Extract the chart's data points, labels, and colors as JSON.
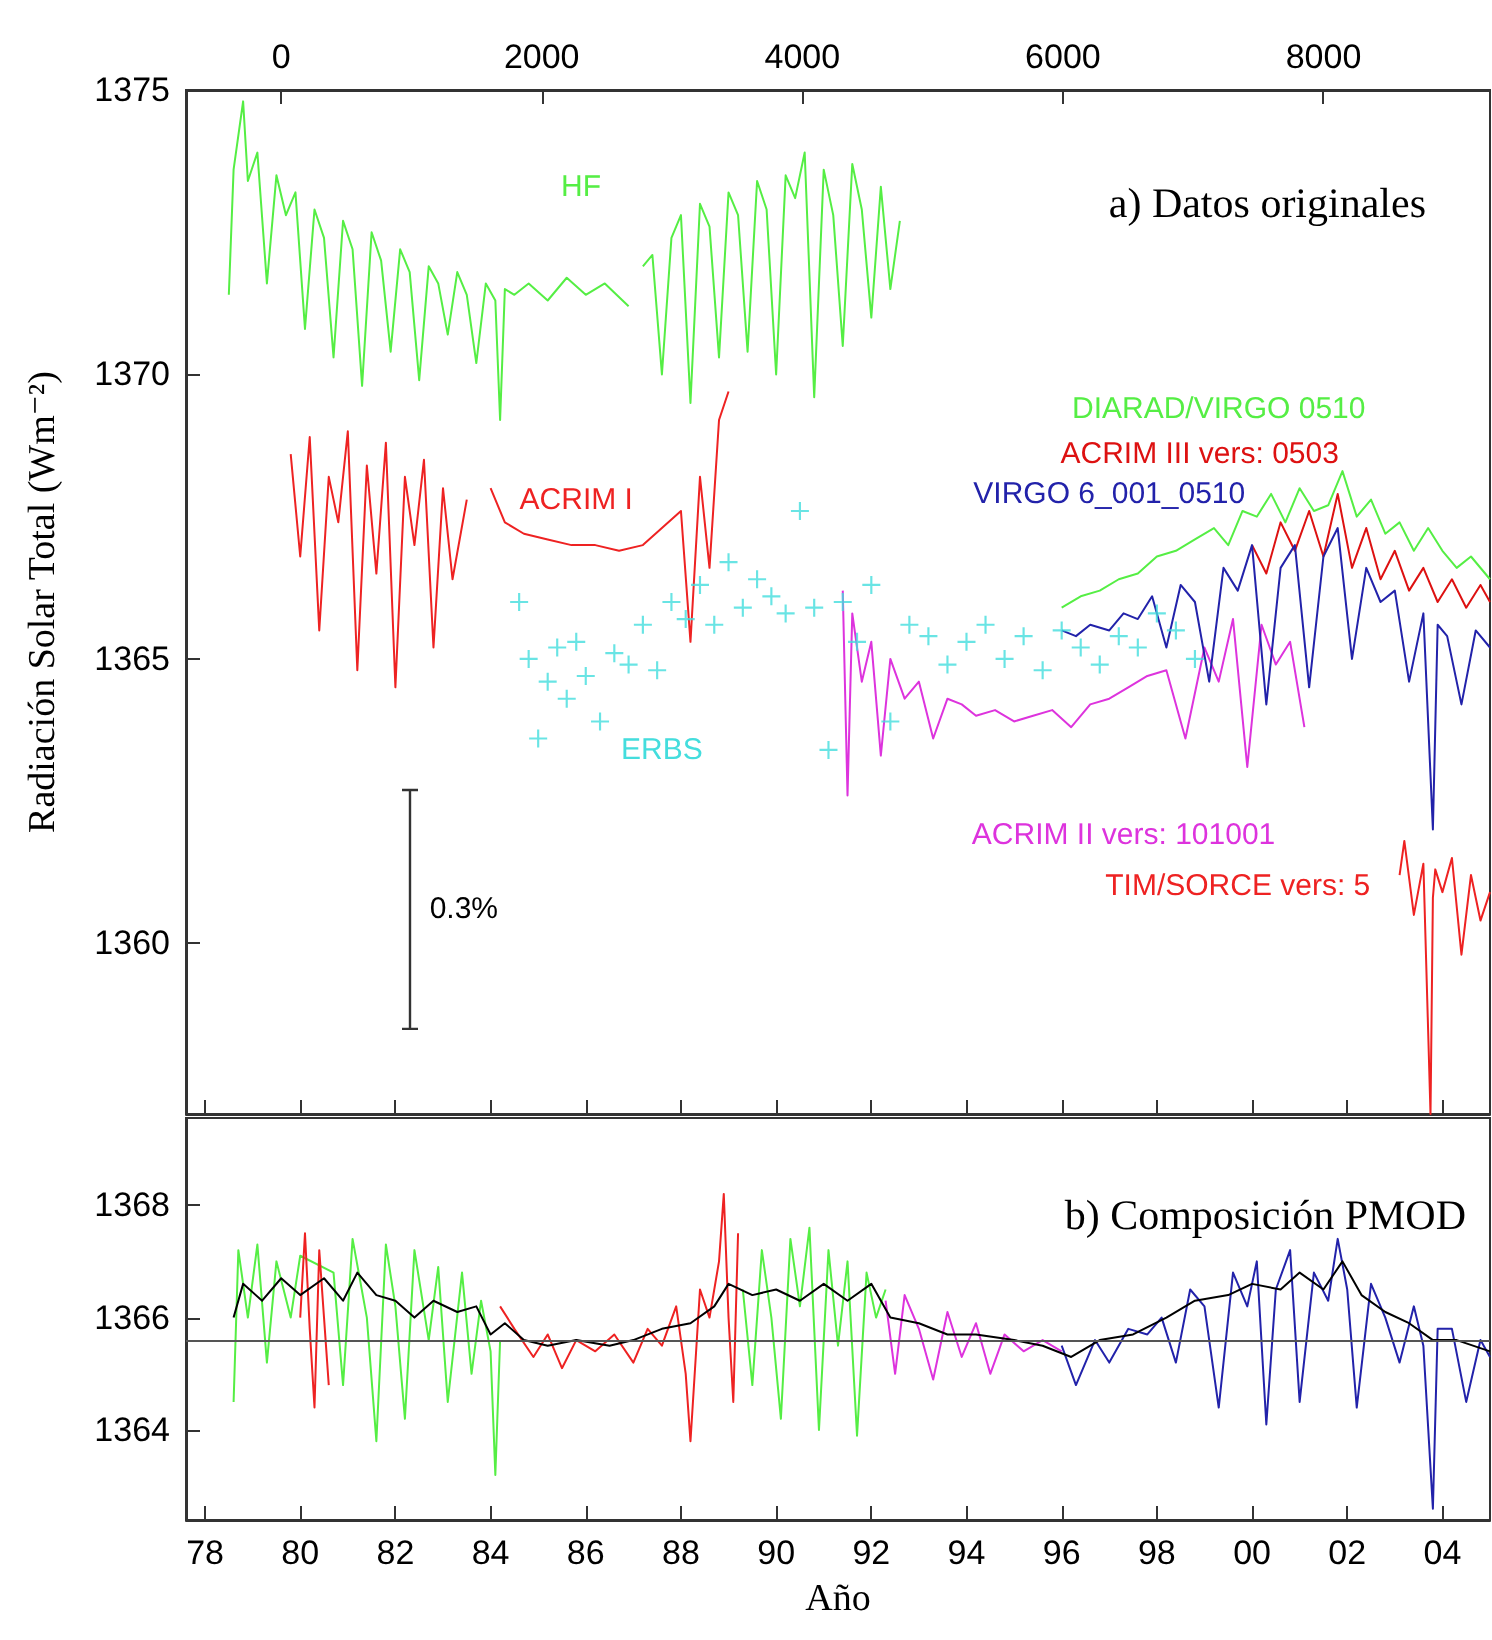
{
  "chart_data": [
    {
      "type": "line",
      "title": "a) Datos originales",
      "ylabel": "Radiación Solar Total (Wm⁻²)",
      "annotations": [
        "0.3%"
      ],
      "legend": false,
      "grid": false,
      "marker": "none",
      "tick_labels": "y",
      "xlim": [
        1977.6,
        2005.0
      ],
      "xticks": [
        {
          "value": 1978,
          "label": null
        },
        {
          "value": 1980,
          "label": null
        },
        {
          "value": 1982,
          "label": null
        },
        {
          "value": 1984,
          "label": null
        },
        {
          "value": 1986,
          "label": null
        },
        {
          "value": 1988,
          "label": null
        },
        {
          "value": 1990,
          "label": null
        },
        {
          "value": 1992,
          "label": null
        },
        {
          "value": 1994,
          "label": null
        },
        {
          "value": 1996,
          "label": null
        },
        {
          "value": 1998,
          "label": null
        },
        {
          "value": 2000,
          "label": null
        },
        {
          "value": 2002,
          "label": null
        },
        {
          "value": 2004,
          "label": null
        }
      ],
      "x2lim": [
        -730,
        9278
      ],
      "x2ticks": [
        0,
        2000,
        4000,
        6000,
        8000
      ],
      "ylim": [
        1357,
        1375
      ],
      "yticks": [
        1360,
        1365,
        1370,
        1375
      ],
      "series": [
        {
          "name": "HF",
          "color": "#55ee44",
          "x": [
            1978.5,
            1978.6,
            1978.8,
            1978.9,
            1979.1,
            1979.3,
            1979.5,
            1979.7,
            1979.9,
            1980.1,
            1980.3,
            1980.5,
            1980.7,
            1980.9,
            1981.1,
            1981.3,
            1981.5,
            1981.7,
            1981.9,
            1982.1,
            1982.3,
            1982.5,
            1982.7,
            1982.9,
            1983.1,
            1983.3,
            1983.5,
            1983.7,
            1983.9,
            1984.1,
            1984.2,
            1984.3,
            1984.5,
            1984.8,
            1985.2,
            1985.6,
            1986.0,
            1986.4,
            1986.9,
            1987.05,
            1987.2,
            1987.4,
            1987.6,
            1987.8,
            1988.0,
            1988.2,
            1988.4,
            1988.6,
            1988.8,
            1989.0,
            1989.2,
            1989.4,
            1989.6,
            1989.8,
            1990.0,
            1990.2,
            1990.4,
            1990.6,
            1990.8,
            1991.0,
            1991.2,
            1991.4,
            1991.6,
            1991.8,
            1992.0,
            1992.2,
            1992.4,
            1992.6
          ],
          "values": [
            1371.4,
            1373.6,
            1374.8,
            1373.4,
            1373.9,
            1371.6,
            1373.5,
            1372.8,
            1373.2,
            1370.8,
            1372.9,
            1372.4,
            1370.3,
            1372.7,
            1372.2,
            1369.8,
            1372.5,
            1372.0,
            1370.4,
            1372.2,
            1371.8,
            1369.9,
            1371.9,
            1371.6,
            1370.7,
            1371.8,
            1371.4,
            1370.2,
            1371.6,
            1371.3,
            1369.2,
            1371.5,
            1371.4,
            1371.6,
            1371.3,
            1371.7,
            1371.4,
            1371.6,
            1371.2,
            null,
            1371.9,
            1372.1,
            1370.0,
            1372.4,
            1372.8,
            1369.5,
            1373.0,
            1372.6,
            1370.3,
            1373.2,
            1372.8,
            1370.4,
            1373.4,
            1372.9,
            1370.0,
            1373.5,
            1373.1,
            1373.9,
            1369.6,
            1373.6,
            1372.8,
            1370.5,
            1373.7,
            1372.9,
            1371.0,
            1373.3,
            1371.5,
            1372.7
          ]
        },
        {
          "name": "ACRIM I",
          "color": "#ee2222",
          "x": [
            1979.8,
            1980.0,
            1980.2,
            1980.4,
            1980.6,
            1980.8,
            1981.0,
            1981.2,
            1981.4,
            1981.6,
            1981.8,
            1982.0,
            1982.2,
            1982.4,
            1982.6,
            1982.8,
            1983.0,
            1983.2,
            1983.5,
            1983.75,
            1984.0,
            1984.3,
            1984.7,
            1985.2,
            1985.7,
            1986.2,
            1986.7,
            1987.2,
            1987.6,
            1988.0,
            1988.2,
            1988.4,
            1988.6,
            1988.8,
            1989.0
          ],
          "values": [
            1368.6,
            1366.8,
            1368.9,
            1365.5,
            1368.2,
            1367.4,
            1369.0,
            1364.8,
            1368.4,
            1366.5,
            1368.8,
            1364.5,
            1368.2,
            1367.0,
            1368.5,
            1365.2,
            1368.0,
            1366.4,
            1367.8,
            null,
            1368.0,
            1367.4,
            1367.2,
            1367.1,
            1367.0,
            1367.0,
            1366.9,
            1367.0,
            1367.3,
            1367.6,
            1365.3,
            1368.2,
            1366.6,
            1369.2,
            1369.7
          ]
        },
        {
          "name": "ERBS",
          "type": "scatter",
          "marker": "cross",
          "color": "#44dddd",
          "x": [
            1984.6,
            1984.8,
            1985.0,
            1985.2,
            1985.4,
            1985.6,
            1985.8,
            1986.0,
            1986.3,
            1986.6,
            1986.9,
            1987.2,
            1987.5,
            1987.8,
            1988.1,
            1988.4,
            1988.7,
            1989.0,
            1989.3,
            1989.6,
            1989.9,
            1990.2,
            1990.5,
            1990.8,
            1991.1,
            1991.4,
            1991.7,
            1992.0,
            1992.4,
            1992.8,
            1993.2,
            1993.6,
            1994.0,
            1994.4,
            1994.8,
            1995.2,
            1995.6,
            1996.0,
            1996.4,
            1996.8,
            1997.2,
            1997.6,
            1998.0,
            1998.4,
            1998.8
          ],
          "values": [
            1366.0,
            1365.0,
            1363.6,
            1364.6,
            1365.2,
            1364.3,
            1365.3,
            1364.7,
            1363.9,
            1365.1,
            1364.9,
            1365.6,
            1364.8,
            1366.0,
            1365.7,
            1366.3,
            1365.6,
            1366.7,
            1365.9,
            1366.4,
            1366.1,
            1365.8,
            1367.6,
            1365.9,
            1363.4,
            1366.0,
            1365.3,
            1366.3,
            1363.9,
            1365.6,
            1365.4,
            1364.9,
            1365.3,
            1365.6,
            1365.0,
            1365.4,
            1364.8,
            1365.5,
            1365.2,
            1364.9,
            1365.4,
            1365.2,
            1365.8,
            1365.5,
            1365.0
          ]
        },
        {
          "name": "ACRIM II vers: 101001",
          "color": "#dd33dd",
          "x": [
            1991.4,
            1991.5,
            1991.6,
            1991.8,
            1992.0,
            1992.2,
            1992.4,
            1992.7,
            1993.0,
            1993.3,
            1993.6,
            1993.9,
            1994.2,
            1994.6,
            1995.0,
            1995.4,
            1995.8,
            1996.2,
            1996.6,
            1997.0,
            1997.4,
            1997.8,
            1998.2,
            1998.6,
            1999.0,
            1999.3,
            1999.6,
            1999.9,
            2000.2,
            2000.5,
            2000.8,
            2001.1
          ],
          "values": [
            1366.2,
            1362.6,
            1365.8,
            1364.6,
            1365.3,
            1363.3,
            1365.0,
            1364.3,
            1364.6,
            1363.6,
            1364.3,
            1364.2,
            1364.0,
            1364.1,
            1363.9,
            1364.0,
            1364.1,
            1363.8,
            1364.2,
            1364.3,
            1364.5,
            1364.7,
            1364.8,
            1363.6,
            1365.2,
            1364.6,
            1365.7,
            1363.1,
            1365.6,
            1364.9,
            1365.3,
            1363.8
          ]
        },
        {
          "name": "DIARAD/VIRGO 0510",
          "color": "#55ee44",
          "x": [
            1996.0,
            1996.4,
            1996.8,
            1997.2,
            1997.6,
            1998.0,
            1998.4,
            1998.8,
            1999.2,
            1999.5,
            1999.8,
            2000.1,
            2000.4,
            2000.7,
            2001.0,
            2001.3,
            2001.6,
            2001.9,
            2002.2,
            2002.5,
            2002.8,
            2003.1,
            2003.4,
            2003.7,
            2004.0,
            2004.3,
            2004.6,
            2005.0
          ],
          "values": [
            1365.9,
            1366.1,
            1366.2,
            1366.4,
            1366.5,
            1366.8,
            1366.9,
            1367.1,
            1367.3,
            1367.0,
            1367.6,
            1367.5,
            1367.9,
            1367.4,
            1368.0,
            1367.6,
            1367.7,
            1368.3,
            1367.5,
            1367.8,
            1367.2,
            1367.4,
            1366.9,
            1367.3,
            1366.9,
            1366.6,
            1366.8,
            1366.4
          ]
        },
        {
          "name": "ACRIM III vers: 0503",
          "color": "#dd1111",
          "x": [
            2000.0,
            2000.3,
            2000.6,
            2000.9,
            2001.2,
            2001.5,
            2001.8,
            2002.1,
            2002.4,
            2002.7,
            2003.0,
            2003.3,
            2003.6,
            2003.9,
            2004.2,
            2004.5,
            2004.8,
            2005.0
          ],
          "values": [
            1367.0,
            1366.5,
            1367.4,
            1366.9,
            1367.6,
            1366.8,
            1367.9,
            1366.6,
            1367.3,
            1366.4,
            1366.9,
            1366.2,
            1366.6,
            1366.0,
            1366.4,
            1365.9,
            1366.3,
            1366.0
          ]
        },
        {
          "name": "VIRGO 6_001_0510",
          "color": "#2222aa",
          "x": [
            1996.0,
            1996.3,
            1996.6,
            1997.0,
            1997.3,
            1997.6,
            1997.9,
            1998.2,
            1998.5,
            1998.8,
            1999.1,
            1999.4,
            1999.7,
            2000.0,
            2000.3,
            2000.6,
            2000.9,
            2001.2,
            2001.5,
            2001.8,
            2002.1,
            2002.4,
            2002.7,
            2003.0,
            2003.3,
            2003.6,
            2003.8,
            2003.9,
            2004.1,
            2004.4,
            2004.7,
            2005.0
          ],
          "values": [
            1365.5,
            1365.4,
            1365.6,
            1365.5,
            1365.8,
            1365.7,
            1366.1,
            1365.2,
            1366.3,
            1366.0,
            1364.6,
            1366.6,
            1366.2,
            1367.0,
            1364.2,
            1366.6,
            1367.0,
            1364.5,
            1366.8,
            1367.3,
            1365.0,
            1366.6,
            1366.0,
            1366.2,
            1364.6,
            1365.8,
            1362.0,
            1365.6,
            1365.4,
            1364.2,
            1365.5,
            1365.2
          ]
        },
        {
          "name": "TIM/SORCE vers: 5",
          "color": "#ee2222",
          "x": [
            2003.1,
            2003.2,
            2003.4,
            2003.6,
            2003.75,
            2003.8,
            2003.85,
            2004.0,
            2004.2,
            2004.4,
            2004.6,
            2004.8,
            2005.0
          ],
          "values": [
            1361.2,
            1361.8,
            1360.5,
            1361.4,
            1357.0,
            1360.8,
            1361.3,
            1360.9,
            1361.5,
            1359.8,
            1361.2,
            1360.4,
            1360.9
          ]
        }
      ]
    },
    {
      "type": "line",
      "title": "b) Composición PMOD",
      "xlabel": "Año",
      "legend": false,
      "grid": false,
      "marker": "none",
      "xlim": [
        1977.6,
        2005.0
      ],
      "xticks": [
        {
          "value": 1978,
          "label": "78"
        },
        {
          "value": 1980,
          "label": "80"
        },
        {
          "value": 1982,
          "label": "82"
        },
        {
          "value": 1984,
          "label": "84"
        },
        {
          "value": 1986,
          "label": "86"
        },
        {
          "value": 1988,
          "label": "88"
        },
        {
          "value": 1990,
          "label": "90"
        },
        {
          "value": 1992,
          "label": "92"
        },
        {
          "value": 1994,
          "label": "94"
        },
        {
          "value": 1996,
          "label": "96"
        },
        {
          "value": 1998,
          "label": "98"
        },
        {
          "value": 2000,
          "label": "00"
        },
        {
          "value": 2002,
          "label": "02"
        },
        {
          "value": 2004,
          "label": "04"
        }
      ],
      "ylim": [
        1362.4,
        1369.55
      ],
      "yticks": [
        1364,
        1366,
        1368
      ],
      "ref_lines": [
        {
          "axis": "y",
          "value": 1365.6,
          "color": "#555555"
        }
      ],
      "series": [
        {
          "color": "#55ee44",
          "x": [
            1978.6,
            1978.7,
            1978.9,
            1979.1,
            1979.3,
            1979.5,
            1979.8,
            1980.0,
            1980.7,
            1980.9,
            1981.1,
            1981.4,
            1981.6,
            1981.8,
            1982.0,
            1982.2,
            1982.4,
            1982.7,
            1982.9,
            1983.1,
            1983.4,
            1983.6,
            1983.8,
            1984.0,
            1984.1,
            1984.2
          ],
          "values": [
            1364.5,
            1367.2,
            1366.0,
            1367.3,
            1365.2,
            1367.0,
            1366.0,
            1367.1,
            1366.8,
            1364.8,
            1367.4,
            1366.0,
            1363.8,
            1367.3,
            1366.2,
            1364.2,
            1367.2,
            1365.6,
            1366.9,
            1364.5,
            1366.8,
            1365.0,
            1366.3,
            1365.4,
            1363.2,
            1365.6
          ]
        },
        {
          "color": "#ee2222",
          "x": [
            1980.0,
            1980.1,
            1980.2,
            1980.3,
            1980.4,
            1980.5,
            1980.6
          ],
          "values": [
            1366.0,
            1367.5,
            1365.8,
            1364.4,
            1367.2,
            1366.0,
            1364.8
          ]
        },
        {
          "color": "#ee2222",
          "x": [
            1984.2,
            1984.5,
            1984.9,
            1985.2,
            1985.5,
            1985.8,
            1986.2,
            1986.6,
            1987.0,
            1987.3,
            1987.6,
            1987.9,
            1988.1,
            1988.2,
            1988.4,
            1988.6,
            1988.8,
            1988.9,
            1989.0,
            1989.1,
            1989.2
          ],
          "values": [
            1366.2,
            1365.8,
            1365.3,
            1365.7,
            1365.1,
            1365.6,
            1365.4,
            1365.7,
            1365.2,
            1365.8,
            1365.5,
            1366.2,
            1365.0,
            1363.8,
            1366.5,
            1366.0,
            1367.0,
            1368.2,
            1366.0,
            1364.5,
            1367.5
          ]
        },
        {
          "color": "#55ee44",
          "x": [
            1989.3,
            1989.5,
            1989.7,
            1989.9,
            1990.1,
            1990.3,
            1990.5,
            1990.7,
            1990.9,
            1991.1,
            1991.3,
            1991.5,
            1991.7,
            1991.9,
            1992.1,
            1992.3
          ],
          "values": [
            1366.5,
            1364.8,
            1367.2,
            1366.0,
            1364.2,
            1367.4,
            1366.2,
            1367.6,
            1364.0,
            1367.2,
            1365.5,
            1367.0,
            1363.9,
            1366.8,
            1366.0,
            1366.5
          ]
        },
        {
          "color": "#dd33dd",
          "x": [
            1992.3,
            1992.5,
            1992.7,
            1993.0,
            1993.3,
            1993.6,
            1993.9,
            1994.2,
            1994.5,
            1994.8,
            1995.2,
            1995.6,
            1996.0
          ],
          "values": [
            1366.3,
            1365.0,
            1366.4,
            1365.8,
            1364.9,
            1366.1,
            1365.3,
            1365.9,
            1365.0,
            1365.7,
            1365.4,
            1365.6,
            1365.4
          ]
        },
        {
          "color": "#2222aa",
          "x": [
            1996.0,
            1996.3,
            1996.7,
            1997.0,
            1997.4,
            1997.8,
            1998.1,
            1998.4,
            1998.7,
            1999.0,
            1999.3,
            1999.6,
            1999.9,
            2000.1,
            2000.3,
            2000.5,
            2000.8,
            2001.0,
            2001.3,
            2001.6,
            2001.8,
            2002.0,
            2002.2,
            2002.5,
            2002.8,
            2003.1,
            2003.4,
            2003.6,
            2003.8,
            2003.9,
            2004.2,
            2004.5,
            2004.8,
            2005.0
          ],
          "values": [
            1365.5,
            1364.8,
            1365.6,
            1365.2,
            1365.8,
            1365.7,
            1366.0,
            1365.2,
            1366.5,
            1366.2,
            1364.4,
            1366.8,
            1366.2,
            1367.0,
            1364.1,
            1366.5,
            1367.2,
            1364.5,
            1366.8,
            1366.3,
            1367.4,
            1366.5,
            1364.4,
            1366.6,
            1366.0,
            1365.2,
            1366.2,
            1365.5,
            1362.6,
            1365.8,
            1365.8,
            1364.5,
            1365.6,
            1365.3
          ]
        },
        {
          "color": "#000000",
          "x": [
            1978.6,
            1978.8,
            1979.2,
            1979.6,
            1980.0,
            1980.5,
            1980.9,
            1981.2,
            1981.6,
            1982.0,
            1982.4,
            1982.8,
            1983.3,
            1983.7,
            1984.0,
            1984.3,
            1984.7,
            1985.2,
            1985.8,
            1986.5,
            1987.0,
            1987.6,
            1988.2,
            1988.7,
            1989.0,
            1989.5,
            1990.0,
            1990.5,
            1991.0,
            1991.5,
            1992.0,
            1992.4,
            1993.0,
            1993.6,
            1994.2,
            1995.0,
            1995.6,
            1996.2,
            1996.8,
            1997.5,
            1998.2,
            1998.8,
            1999.5,
            2000.0,
            2000.6,
            2001.0,
            2001.5,
            2001.9,
            2002.3,
            2002.8,
            2003.3,
            2003.8,
            2004.3,
            2005.0
          ],
          "values": [
            1366.0,
            1366.6,
            1366.3,
            1366.7,
            1366.4,
            1366.7,
            1366.3,
            1366.8,
            1366.4,
            1366.3,
            1366.0,
            1366.3,
            1366.1,
            1366.2,
            1365.7,
            1365.9,
            1365.6,
            1365.5,
            1365.6,
            1365.5,
            1365.6,
            1365.8,
            1365.9,
            1366.2,
            1366.6,
            1366.4,
            1366.5,
            1366.3,
            1366.6,
            1366.3,
            1366.6,
            1366.0,
            1365.9,
            1365.7,
            1365.7,
            1365.6,
            1365.5,
            1365.3,
            1365.6,
            1365.7,
            1366.0,
            1366.3,
            1366.4,
            1366.6,
            1366.5,
            1366.8,
            1366.5,
            1367.0,
            1366.4,
            1366.1,
            1365.9,
            1365.6,
            1365.6,
            1365.4
          ]
        }
      ]
    }
  ]
}
